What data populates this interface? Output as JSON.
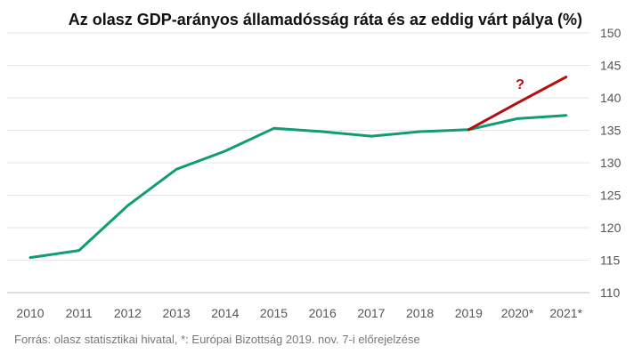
{
  "chart_data": {
    "type": "line",
    "title": "Az olasz GDP-arányos államadósság ráta és az eddig várt pálya (%)",
    "x": [
      "2010",
      "2011",
      "2012",
      "2013",
      "2014",
      "2015",
      "2016",
      "2017",
      "2018",
      "2019",
      "2020*",
      "2021*"
    ],
    "series": [
      {
        "values": [
          115.4,
          116.5,
          123.4,
          129.0,
          131.8,
          135.3,
          134.8,
          134.1,
          134.8,
          135.1,
          136.8,
          137.3
        ],
        "color": "#109c74"
      },
      {
        "values": [
          null,
          null,
          null,
          null,
          null,
          null,
          null,
          null,
          null,
          135.1,
          139.2,
          143.2
        ],
        "color": "#b30f0f"
      }
    ],
    "ylim": [
      110,
      150
    ],
    "yticks": [
      110,
      115,
      120,
      125,
      130,
      135,
      140,
      145,
      150
    ],
    "y_axis_side": "right",
    "grid": true,
    "annotation": "?",
    "source": "Forrás: olasz statisztikai hivatal, *: Európai Bizottság 2019. nov. 7-i előrejelzése"
  }
}
